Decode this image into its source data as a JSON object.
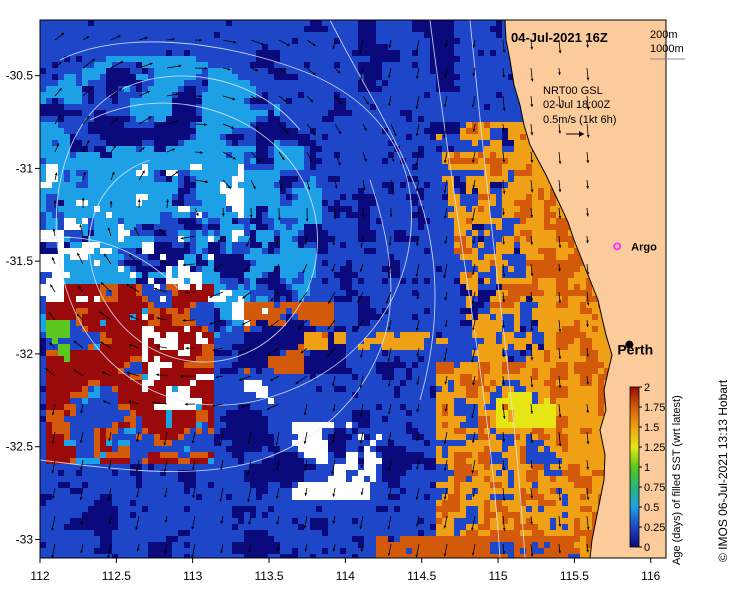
{
  "map": {
    "date_label": "04-Jul-2021 16Z",
    "contour_legend": [
      "200m",
      "1000m"
    ],
    "current_info": {
      "line1": "NRT00 GSL",
      "line2": "02-Jul 18:00Z",
      "line3": "0.5m/s (1kt 6h)"
    },
    "places": [
      {
        "name": "Argo",
        "lon": 115.78,
        "lat": -31.42,
        "color": "#ff33ff"
      },
      {
        "name": "Perth",
        "lon": 115.86,
        "lat": -31.95,
        "color": "#000000"
      }
    ],
    "x_ticks": [
      "112",
      "112.5",
      "113",
      "113.5",
      "114",
      "114.5",
      "115",
      "115.5",
      "116"
    ],
    "y_ticks": [
      "-30.5",
      "-31",
      "-31.5",
      "-32",
      "-32.5",
      "-33"
    ],
    "colorbar": {
      "ticks": [
        "0",
        "0.25",
        "0.5",
        "0.75",
        "1",
        "1.25",
        "1.5",
        "1.75",
        "2"
      ],
      "label": "Age (days) of filled SST (wrt latest)"
    },
    "credit": "© IMOS 06-Jul-2021 13:13 Hobart",
    "colors": {
      "land": "#fccb9c",
      "no_data": "#ffffff",
      "age_0": "#0a0a7d",
      "age_0_25": "#1e46c8",
      "age_0_5": "#1ea0e6",
      "age_0_75": "#28b47a",
      "age_1": "#5ac81e",
      "age_1_25": "#e6e614",
      "age_1_5": "#f0a014",
      "age_1_75": "#d25a0a",
      "age_2": "#9b0a0a"
    }
  }
}
